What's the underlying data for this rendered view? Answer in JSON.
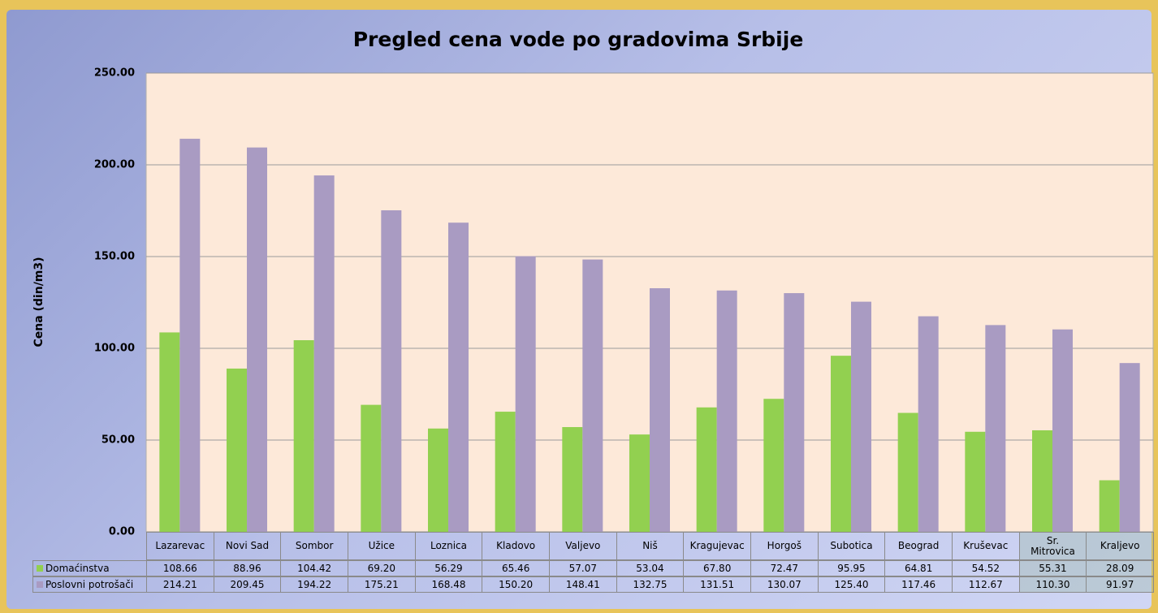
{
  "chart_data": {
    "type": "bar",
    "title": "Pregled cena vode po gradovima Srbije",
    "y_label": "Cena (din/m3)",
    "categories": [
      "Lazarevac",
      "Novi Sad",
      "Sombor",
      "Užice",
      "Loznica",
      "Kladovo",
      "Valjevo",
      "Niš",
      "Kragujevac",
      "Horgoš",
      "Subotica",
      "Beograd",
      "Kruševac",
      "Sr. Mitrovica",
      "Kraljevo"
    ],
    "series": [
      {
        "name": "Domaćinstva",
        "color": "#92d050",
        "values": [
          108.66,
          88.96,
          104.42,
          69.2,
          56.29,
          65.46,
          57.07,
          53.04,
          67.8,
          72.47,
          95.95,
          64.81,
          54.52,
          55.31,
          28.09
        ],
        "value_labels": [
          "108.66",
          "88.96",
          "104.42",
          "69.20",
          "56.29",
          "65.46",
          "57.07",
          "53.04",
          "67.80",
          "72.47",
          "95.95",
          "64.81",
          "54.52",
          "55.31",
          "28.09"
        ]
      },
      {
        "name": "Poslovni potrošači",
        "color": "#a99bc2",
        "values": [
          214.21,
          209.45,
          194.22,
          175.21,
          168.48,
          150.2,
          148.41,
          132.75,
          131.51,
          130.07,
          125.4,
          117.46,
          112.67,
          110.3,
          91.97
        ],
        "value_labels": [
          "214.21",
          "209.45",
          "194.22",
          "175.21",
          "168.48",
          "150.20",
          "148.41",
          "132.75",
          "131.51",
          "130.07",
          "125.40",
          "117.46",
          "112.67",
          "110.30",
          "91.97"
        ]
      }
    ],
    "ylim": [
      0,
      250
    ],
    "yticks": [
      {
        "value": 0,
        "label": "0.00"
      },
      {
        "value": 50,
        "label": "50.00"
      },
      {
        "value": 100,
        "label": "100.00"
      },
      {
        "value": 150,
        "label": "150.00"
      },
      {
        "value": 200,
        "label": "200.00"
      },
      {
        "value": 250,
        "label": "250.00"
      }
    ],
    "grid": true
  }
}
